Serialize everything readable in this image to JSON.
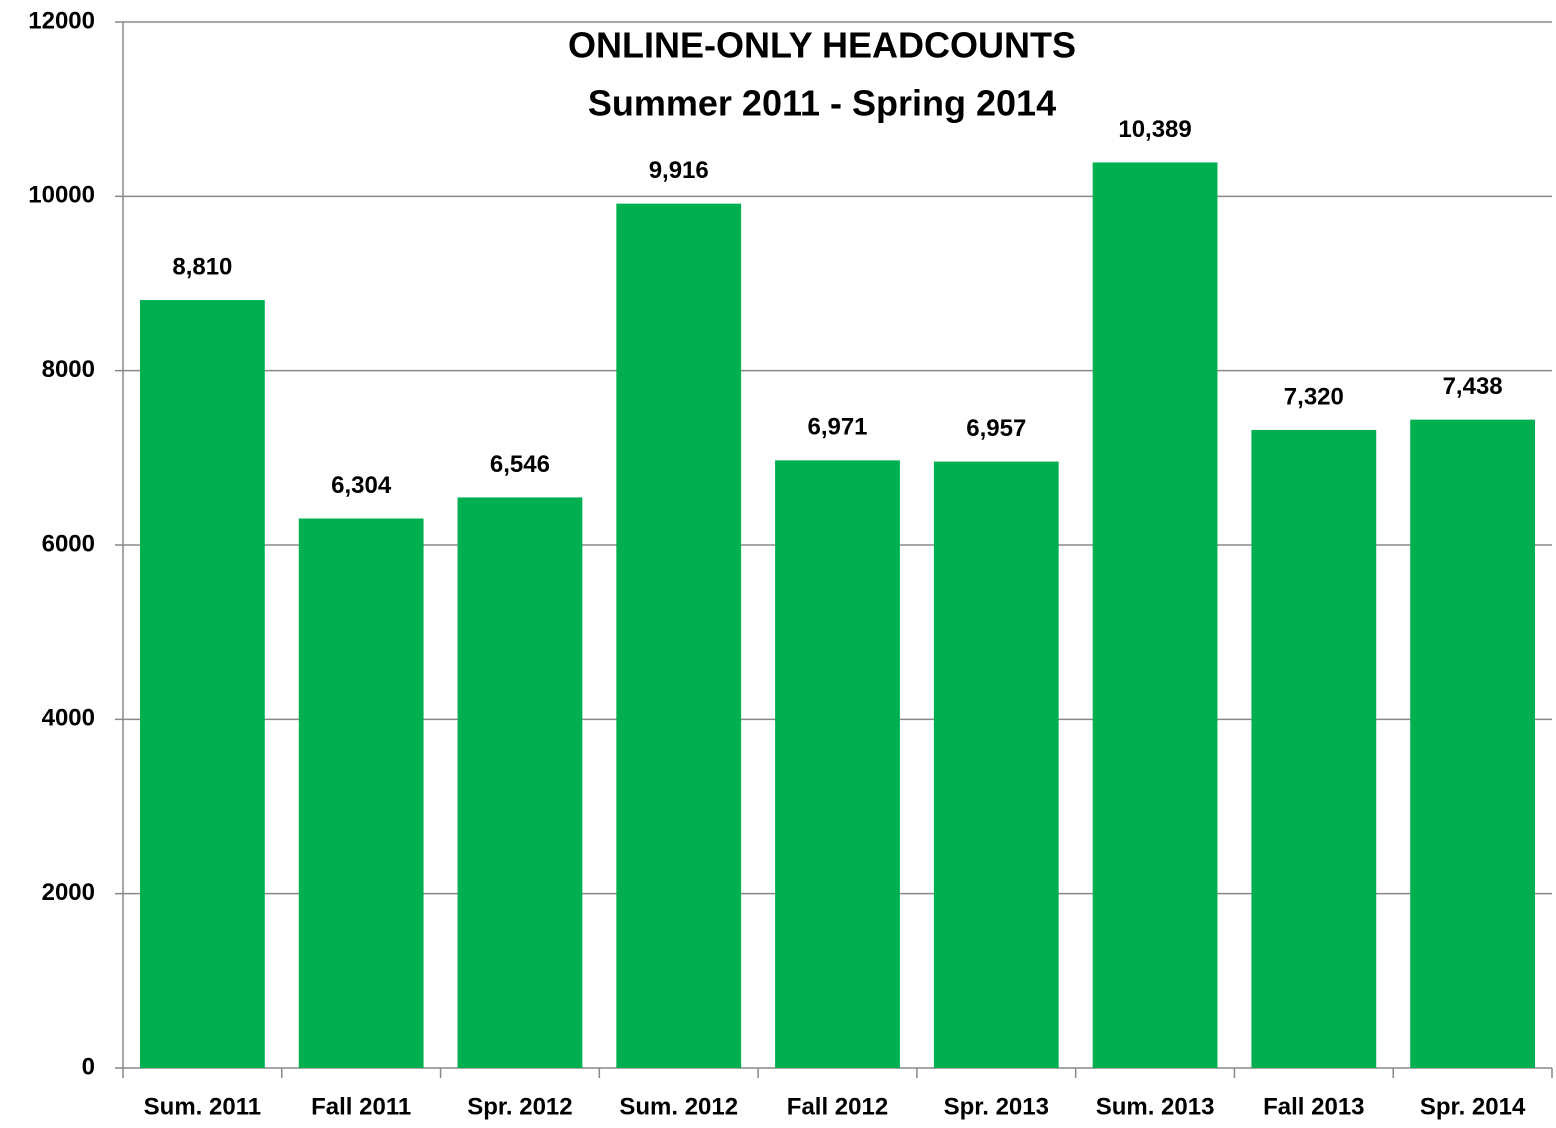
{
  "chart_data": {
    "type": "bar",
    "title": "ONLINE-ONLY HEADCOUNTS",
    "subtitle": "Summer 2011 - Spring 2014",
    "categories": [
      "Sum. 2011",
      "Fall 2011",
      "Spr. 2012",
      "Sum. 2012",
      "Fall 2012",
      "Spr. 2013",
      "Sum. 2013",
      "Fall 2013",
      "Spr. 2014"
    ],
    "values": [
      8810,
      6304,
      6546,
      9916,
      6971,
      6957,
      10389,
      7320,
      7438
    ],
    "value_labels": [
      "8,810",
      "6,304",
      "6,546",
      "9,916",
      "6,971",
      "6,957",
      "10,389",
      "7,320",
      "7,438"
    ],
    "color": "#00b050",
    "ylim": [
      0,
      12000
    ],
    "yticks": [
      0,
      2000,
      4000,
      6000,
      8000,
      10000,
      12000
    ],
    "grid": true
  }
}
